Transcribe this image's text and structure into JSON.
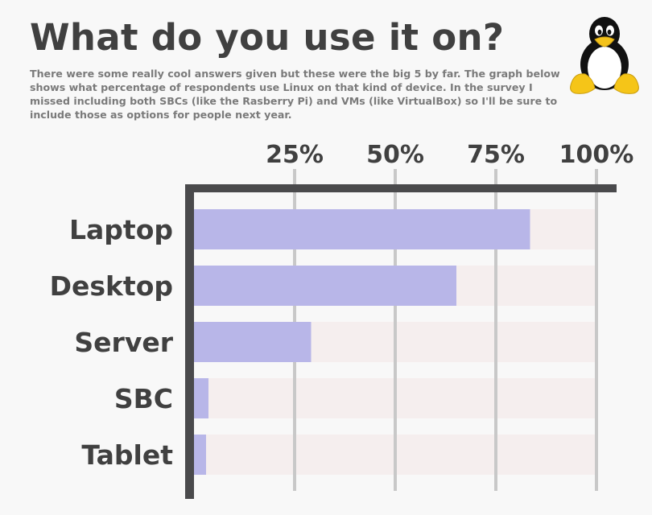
{
  "title": "What do you use it on?",
  "subtitle": "There were some really cool answers given but these were the big 5 by far. The graph below shows what percentage of respondents use Linux on that kind of device. In the survey I missed including both SBCs (like the Rasberry Pi) and VMs (like VirtualBox) so I'll be sure to include those as options for people next year.",
  "logo_icon": "tux-penguin-icon",
  "colors": {
    "bar": "#b8b6e8",
    "track": "#f5eeee",
    "axis": "#4a4a4c",
    "grid": "#c8c8c8",
    "text": "#404040"
  },
  "chart_data": {
    "type": "bar",
    "orientation": "horizontal",
    "categories": [
      "Laptop",
      "Desktop",
      "Server",
      "SBC",
      "Tablet"
    ],
    "values": [
      83.5,
      65.2,
      29.1,
      3.6,
      3.0
    ],
    "max": 100,
    "ticks": [
      25,
      50,
      75,
      100
    ],
    "tick_labels": [
      "25%",
      "50%",
      "75%",
      "100%"
    ],
    "xlim": [
      0,
      100
    ],
    "grid": true,
    "axis_position": "top"
  }
}
